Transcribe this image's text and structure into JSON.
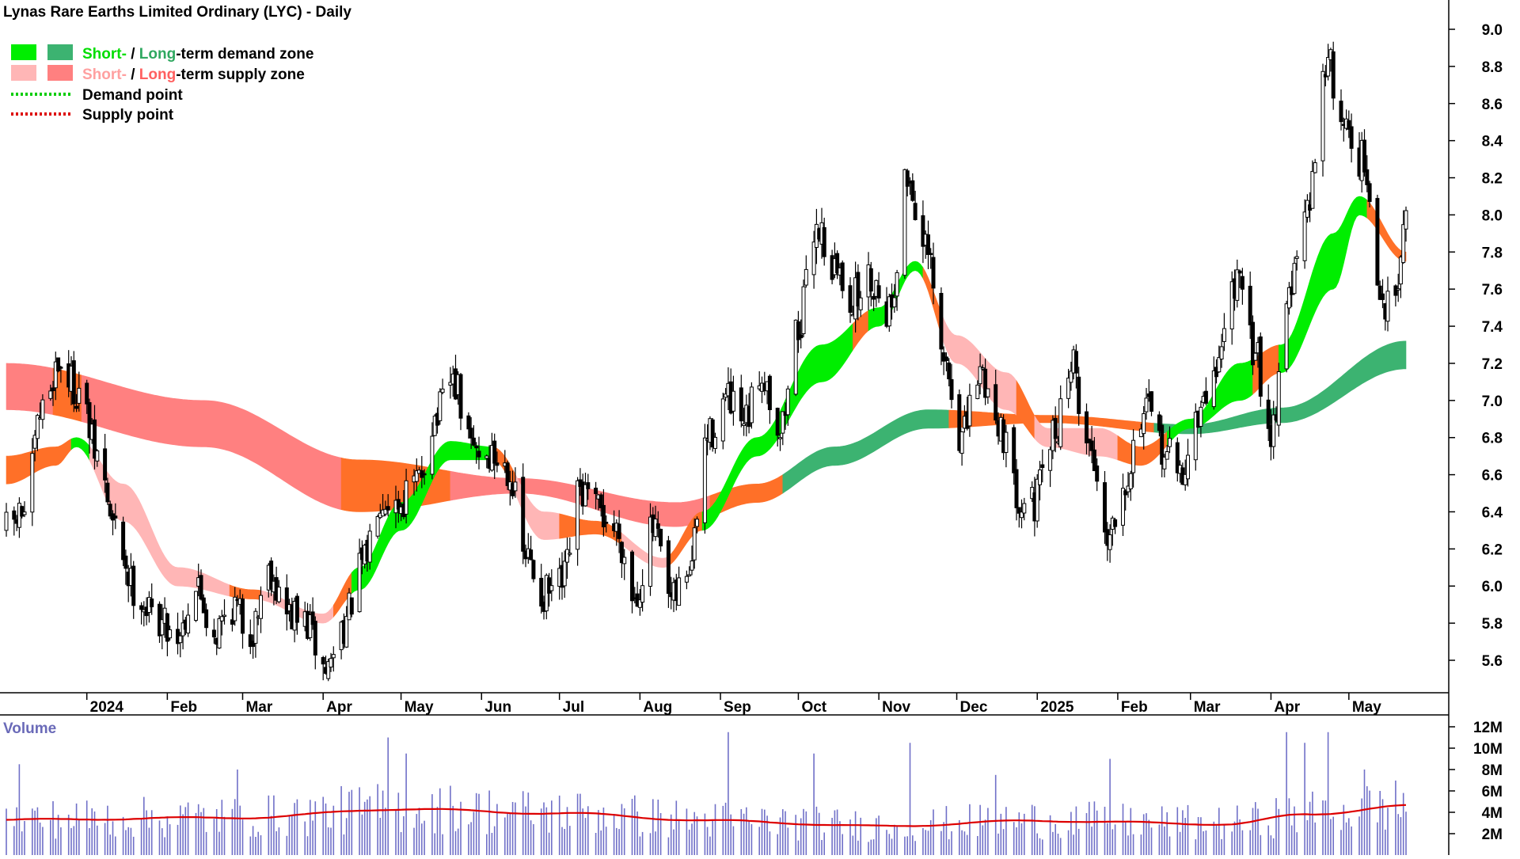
{
  "title": "Lynas Rare Earths Limited Ordinary (LYC) - Daily",
  "legend": {
    "demand_zone": {
      "short": "Short-",
      "sep": " / ",
      "long": "Long",
      "rest": "-term demand zone"
    },
    "supply_zone": {
      "short": "Short-",
      "sep": " / ",
      "long": "Long",
      "rest": "-term supply zone"
    },
    "demand_point": "Demand point",
    "supply_point": "Supply point"
  },
  "colors": {
    "short_demand": "#00ee00",
    "long_demand": "#3cb371",
    "short_supply": "#ffb6b6",
    "long_supply": "#ff8080",
    "transition": "#ff7028",
    "demand_point": "#00cc00",
    "supply_point": "#dd0000",
    "volume_bar": "#7070c8",
    "volume_avg": "#dd0000",
    "candle_up": "#ffffff",
    "candle_down": "#000000"
  },
  "chart_data": [
    {
      "type": "candlestick",
      "title": "Lynas Rare Earths Limited Ordinary (LYC) - Daily",
      "ylim": [
        5.3,
        9.1
      ],
      "y_ticks": [
        "9.0",
        "8.8",
        "8.6",
        "8.4",
        "8.2",
        "8.0",
        "7.8",
        "7.6",
        "7.4",
        "7.2",
        "7.0",
        "6.8",
        "6.6",
        "6.4",
        "6.2",
        "6.0",
        "5.8",
        "5.6"
      ],
      "x_tick_labels": [
        "2024",
        "Feb",
        "Mar",
        "Apr",
        "May",
        "Jun",
        "Jul",
        "Aug",
        "Sep",
        "Oct",
        "Nov",
        "Dec",
        "2025",
        "Feb",
        "Mar",
        "Apr",
        "May"
      ],
      "x_range": [
        "2023-12-01",
        "2025-05-23"
      ],
      "price_anchors": [
        {
          "date": "2023-12-01",
          "close": 6.3
        },
        {
          "date": "2023-12-08",
          "close": 6.4
        },
        {
          "date": "2023-12-15",
          "close": 6.95
        },
        {
          "date": "2023-12-21",
          "close": 7.2
        },
        {
          "date": "2023-12-29",
          "close": 7.05
        },
        {
          "date": "2024-01-05",
          "close": 6.7
        },
        {
          "date": "2024-01-12",
          "close": 6.3
        },
        {
          "date": "2024-01-19",
          "close": 6.0
        },
        {
          "date": "2024-01-26",
          "close": 5.85
        },
        {
          "date": "2024-02-05",
          "close": 5.75
        },
        {
          "date": "2024-02-12",
          "close": 6.0
        },
        {
          "date": "2024-02-19",
          "close": 5.75
        },
        {
          "date": "2024-02-26",
          "close": 5.9
        },
        {
          "date": "2024-03-04",
          "close": 5.75
        },
        {
          "date": "2024-03-11",
          "close": 6.1
        },
        {
          "date": "2024-03-18",
          "close": 5.85
        },
        {
          "date": "2024-03-25",
          "close": 5.8
        },
        {
          "date": "2024-04-02",
          "close": 5.55
        },
        {
          "date": "2024-04-09",
          "close": 5.8
        },
        {
          "date": "2024-04-16",
          "close": 6.1
        },
        {
          "date": "2024-04-23",
          "close": 6.5
        },
        {
          "date": "2024-04-30",
          "close": 6.45
        },
        {
          "date": "2024-05-07",
          "close": 6.55
        },
        {
          "date": "2024-05-14",
          "close": 6.9
        },
        {
          "date": "2024-05-21",
          "close": 7.1
        },
        {
          "date": "2024-05-28",
          "close": 6.75
        },
        {
          "date": "2024-06-04",
          "close": 6.7
        },
        {
          "date": "2024-06-11",
          "close": 6.65
        },
        {
          "date": "2024-06-18",
          "close": 6.15
        },
        {
          "date": "2024-06-25",
          "close": 5.95
        },
        {
          "date": "2024-07-02",
          "close": 6.0
        },
        {
          "date": "2024-07-09",
          "close": 6.5
        },
        {
          "date": "2024-07-16",
          "close": 6.4
        },
        {
          "date": "2024-07-23",
          "close": 6.3
        },
        {
          "date": "2024-07-30",
          "close": 5.95
        },
        {
          "date": "2024-08-06",
          "close": 6.3
        },
        {
          "date": "2024-08-13",
          "close": 5.9
        },
        {
          "date": "2024-08-20",
          "close": 6.1
        },
        {
          "date": "2024-08-27",
          "close": 6.8
        },
        {
          "date": "2024-09-03",
          "close": 7.0
        },
        {
          "date": "2024-09-10",
          "close": 6.85
        },
        {
          "date": "2024-09-17",
          "close": 7.15
        },
        {
          "date": "2024-09-24",
          "close": 6.85
        },
        {
          "date": "2024-10-01",
          "close": 7.4
        },
        {
          "date": "2024-10-08",
          "close": 7.95
        },
        {
          "date": "2024-10-15",
          "close": 7.7
        },
        {
          "date": "2024-10-22",
          "close": 7.55
        },
        {
          "date": "2024-10-29",
          "close": 7.65
        },
        {
          "date": "2024-11-05",
          "close": 7.5
        },
        {
          "date": "2024-11-12",
          "close": 8.2
        },
        {
          "date": "2024-11-19",
          "close": 7.8
        },
        {
          "date": "2024-11-26",
          "close": 7.2
        },
        {
          "date": "2024-12-03",
          "close": 6.8
        },
        {
          "date": "2024-12-10",
          "close": 7.15
        },
        {
          "date": "2024-12-17",
          "close": 6.9
        },
        {
          "date": "2024-12-24",
          "close": 6.5
        },
        {
          "date": "2024-12-31",
          "close": 6.45
        },
        {
          "date": "2025-01-07",
          "close": 6.8
        },
        {
          "date": "2025-01-14",
          "close": 7.2
        },
        {
          "date": "2025-01-21",
          "close": 6.75
        },
        {
          "date": "2025-01-28",
          "close": 6.3
        },
        {
          "date": "2025-02-04",
          "close": 6.6
        },
        {
          "date": "2025-02-11",
          "close": 6.95
        },
        {
          "date": "2025-02-18",
          "close": 6.75
        },
        {
          "date": "2025-02-25",
          "close": 6.6
        },
        {
          "date": "2025-03-04",
          "close": 6.9
        },
        {
          "date": "2025-03-11",
          "close": 7.2
        },
        {
          "date": "2025-03-18",
          "close": 7.65
        },
        {
          "date": "2025-03-25",
          "close": 7.3
        },
        {
          "date": "2025-04-01",
          "close": 6.85
        },
        {
          "date": "2025-04-08",
          "close": 7.6
        },
        {
          "date": "2025-04-15",
          "close": 8.0
        },
        {
          "date": "2025-04-22",
          "close": 8.85
        },
        {
          "date": "2025-04-29",
          "close": 8.5
        },
        {
          "date": "2025-05-06",
          "close": 8.3
        },
        {
          "date": "2025-05-13",
          "close": 7.55
        },
        {
          "date": "2025-05-16",
          "close": 7.5
        },
        {
          "date": "2025-05-20",
          "close": 7.7
        },
        {
          "date": "2025-05-23",
          "close": 8.1
        }
      ],
      "short_term_zone_upper": [
        {
          "date": "2023-12-01",
          "value": 6.7
        },
        {
          "date": "2023-12-20",
          "value": 6.75
        },
        {
          "date": "2023-12-28",
          "value": 6.8
        },
        {
          "date": "2024-01-15",
          "value": 6.55
        },
        {
          "date": "2024-02-05",
          "value": 6.1
        },
        {
          "date": "2024-03-05",
          "value": 5.98
        },
        {
          "date": "2024-04-01",
          "value": 5.85
        },
        {
          "date": "2024-04-15",
          "value": 6.1
        },
        {
          "date": "2024-05-01",
          "value": 6.45
        },
        {
          "date": "2024-05-20",
          "value": 6.78
        },
        {
          "date": "2024-06-05",
          "value": 6.75
        },
        {
          "date": "2024-06-25",
          "value": 6.4
        },
        {
          "date": "2024-07-15",
          "value": 6.35
        },
        {
          "date": "2024-08-10",
          "value": 6.15
        },
        {
          "date": "2024-08-25",
          "value": 6.4
        },
        {
          "date": "2024-09-15",
          "value": 6.8
        },
        {
          "date": "2024-10-10",
          "value": 7.3
        },
        {
          "date": "2024-11-01",
          "value": 7.5
        },
        {
          "date": "2024-11-15",
          "value": 7.75
        },
        {
          "date": "2024-12-01",
          "value": 7.35
        },
        {
          "date": "2024-12-20",
          "value": 7.15
        },
        {
          "date": "2025-01-05",
          "value": 6.85
        },
        {
          "date": "2025-01-25",
          "value": 6.85
        },
        {
          "date": "2025-02-10",
          "value": 6.75
        },
        {
          "date": "2025-03-01",
          "value": 6.9
        },
        {
          "date": "2025-03-20",
          "value": 7.2
        },
        {
          "date": "2025-04-05",
          "value": 7.3
        },
        {
          "date": "2025-04-25",
          "value": 7.9
        },
        {
          "date": "2025-05-05",
          "value": 8.1
        },
        {
          "date": "2025-05-23",
          "value": 7.8
        }
      ],
      "short_term_zone_lower": [
        {
          "date": "2023-12-01",
          "value": 6.55
        },
        {
          "date": "2023-12-20",
          "value": 6.65
        },
        {
          "date": "2023-12-28",
          "value": 6.75
        },
        {
          "date": "2024-01-15",
          "value": 6.35
        },
        {
          "date": "2024-02-05",
          "value": 6.0
        },
        {
          "date": "2024-03-05",
          "value": 5.93
        },
        {
          "date": "2024-04-01",
          "value": 5.8
        },
        {
          "date": "2024-04-15",
          "value": 5.98
        },
        {
          "date": "2024-05-01",
          "value": 6.3
        },
        {
          "date": "2024-05-20",
          "value": 6.68
        },
        {
          "date": "2024-06-05",
          "value": 6.68
        },
        {
          "date": "2024-06-25",
          "value": 6.25
        },
        {
          "date": "2024-07-15",
          "value": 6.28
        },
        {
          "date": "2024-08-10",
          "value": 6.1
        },
        {
          "date": "2024-08-25",
          "value": 6.3
        },
        {
          "date": "2024-09-15",
          "value": 6.7
        },
        {
          "date": "2024-10-10",
          "value": 7.1
        },
        {
          "date": "2024-11-01",
          "value": 7.4
        },
        {
          "date": "2024-11-15",
          "value": 7.7
        },
        {
          "date": "2024-12-01",
          "value": 7.2
        },
        {
          "date": "2024-12-20",
          "value": 6.95
        },
        {
          "date": "2025-01-05",
          "value": 6.75
        },
        {
          "date": "2025-01-25",
          "value": 6.7
        },
        {
          "date": "2025-02-10",
          "value": 6.65
        },
        {
          "date": "2025-03-01",
          "value": 6.85
        },
        {
          "date": "2025-03-20",
          "value": 7.0
        },
        {
          "date": "2025-04-05",
          "value": 7.15
        },
        {
          "date": "2025-04-25",
          "value": 7.6
        },
        {
          "date": "2025-05-05",
          "value": 8.0
        },
        {
          "date": "2025-05-23",
          "value": 7.75
        }
      ],
      "long_term_zone_upper": [
        {
          "date": "2023-12-01",
          "value": 7.2
        },
        {
          "date": "2024-02-15",
          "value": 7.0
        },
        {
          "date": "2024-04-15",
          "value": 6.68
        },
        {
          "date": "2024-06-15",
          "value": 6.58
        },
        {
          "date": "2024-08-15",
          "value": 6.45
        },
        {
          "date": "2024-09-15",
          "value": 6.55
        },
        {
          "date": "2024-10-15",
          "value": 6.75
        },
        {
          "date": "2024-11-20",
          "value": 6.95
        },
        {
          "date": "2025-01-05",
          "value": 6.92
        },
        {
          "date": "2025-03-01",
          "value": 6.87
        },
        {
          "date": "2025-04-05",
          "value": 6.96
        },
        {
          "date": "2025-05-23",
          "value": 7.32
        }
      ],
      "long_term_zone_lower": [
        {
          "date": "2023-12-01",
          "value": 6.95
        },
        {
          "date": "2024-02-15",
          "value": 6.75
        },
        {
          "date": "2024-04-15",
          "value": 6.4
        },
        {
          "date": "2024-06-15",
          "value": 6.5
        },
        {
          "date": "2024-08-15",
          "value": 6.32
        },
        {
          "date": "2024-09-15",
          "value": 6.45
        },
        {
          "date": "2024-10-15",
          "value": 6.65
        },
        {
          "date": "2024-11-20",
          "value": 6.85
        },
        {
          "date": "2025-01-05",
          "value": 6.88
        },
        {
          "date": "2025-03-01",
          "value": 6.82
        },
        {
          "date": "2025-04-05",
          "value": 6.88
        },
        {
          "date": "2025-05-23",
          "value": 7.17
        }
      ]
    },
    {
      "type": "bar",
      "title": "Volume",
      "ylim": [
        0,
        13
      ],
      "y_ticks": [
        "12M",
        "10M",
        "8M",
        "6M",
        "4M",
        "2M"
      ],
      "volume_spikes": [
        {
          "date": "2023-12-06",
          "value": 8.5
        },
        {
          "date": "2024-02-28",
          "value": 8.0
        },
        {
          "date": "2024-04-26",
          "value": 11.0
        },
        {
          "date": "2024-05-03",
          "value": 9.5
        },
        {
          "date": "2024-09-04",
          "value": 11.5
        },
        {
          "date": "2024-10-07",
          "value": 9.5
        },
        {
          "date": "2024-11-13",
          "value": 10.5
        },
        {
          "date": "2024-12-16",
          "value": 7.5
        },
        {
          "date": "2025-01-29",
          "value": 9.0
        },
        {
          "date": "2025-04-07",
          "value": 11.5
        },
        {
          "date": "2025-04-14",
          "value": 10.5
        },
        {
          "date": "2025-04-23",
          "value": 11.5
        },
        {
          "date": "2025-05-07",
          "value": 8.0
        }
      ],
      "average_line": [
        {
          "date": "2023-12-01",
          "value": 3.3
        },
        {
          "date": "2024-03-01",
          "value": 3.5
        },
        {
          "date": "2024-05-01",
          "value": 4.3
        },
        {
          "date": "2024-07-01",
          "value": 3.9
        },
        {
          "date": "2024-09-01",
          "value": 3.2
        },
        {
          "date": "2024-11-01",
          "value": 2.7
        },
        {
          "date": "2025-01-01",
          "value": 3.2
        },
        {
          "date": "2025-03-15",
          "value": 2.9
        },
        {
          "date": "2025-04-15",
          "value": 3.8
        },
        {
          "date": "2025-05-23",
          "value": 4.6
        }
      ]
    }
  ]
}
